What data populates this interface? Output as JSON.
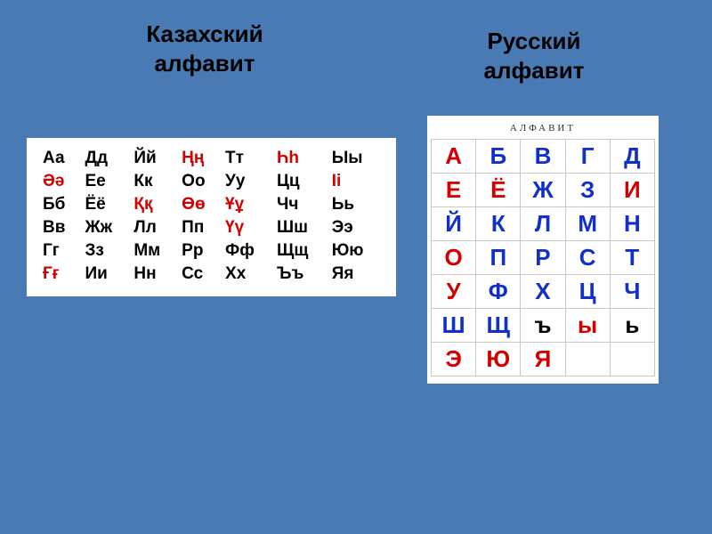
{
  "titles": {
    "kazakh": "Казахский алфавит",
    "russian": "Русский алфавит"
  },
  "kazakh_alphabet": {
    "background_color": "#ffffff",
    "text_color": "#000000",
    "highlight_color": "#d30000",
    "font_size": 19,
    "columns": 7,
    "rows": [
      [
        {
          "t": "Аа",
          "c": "black"
        },
        {
          "t": "Дд",
          "c": "black"
        },
        {
          "t": "Йй",
          "c": "black"
        },
        {
          "t": "Ңң",
          "c": "red"
        },
        {
          "t": "Тт",
          "c": "black"
        },
        {
          "t": "Һһ",
          "c": "red"
        },
        {
          "t": "Ыы",
          "c": "black"
        }
      ],
      [
        {
          "t": "Әә",
          "c": "red"
        },
        {
          "t": "Ее",
          "c": "black"
        },
        {
          "t": "Кк",
          "c": "black"
        },
        {
          "t": "Оо",
          "c": "black"
        },
        {
          "t": "Уу",
          "c": "black"
        },
        {
          "t": "Цц",
          "c": "black"
        },
        {
          "t": "Іі",
          "c": "red"
        }
      ],
      [
        {
          "t": "Бб",
          "c": "black"
        },
        {
          "t": "Ёё",
          "c": "black"
        },
        {
          "t": "Ққ",
          "c": "red"
        },
        {
          "t": "Өө",
          "c": "red"
        },
        {
          "t": "Ұұ",
          "c": "red"
        },
        {
          "t": "Чч",
          "c": "black"
        },
        {
          "t": "Ьь",
          "c": "black"
        }
      ],
      [
        {
          "t": "Вв",
          "c": "black"
        },
        {
          "t": "Жж",
          "c": "black"
        },
        {
          "t": "Лл",
          "c": "black"
        },
        {
          "t": "Пп",
          "c": "black"
        },
        {
          "t": "Үү",
          "c": "red"
        },
        {
          "t": "Шш",
          "c": "black"
        },
        {
          "t": "Ээ",
          "c": "black"
        }
      ],
      [
        {
          "t": "Гг",
          "c": "black"
        },
        {
          "t": "Зз",
          "c": "black"
        },
        {
          "t": "Мм",
          "c": "black"
        },
        {
          "t": "Рр",
          "c": "black"
        },
        {
          "t": "Фф",
          "c": "black"
        },
        {
          "t": "Щщ",
          "c": "black"
        },
        {
          "t": "Юю",
          "c": "black"
        }
      ],
      [
        {
          "t": "Ғғ",
          "c": "red"
        },
        {
          "t": "Ии",
          "c": "black"
        },
        {
          "t": "Нн",
          "c": "black"
        },
        {
          "t": "Сс",
          "c": "black"
        },
        {
          "t": "Хх",
          "c": "black"
        },
        {
          "t": "Ъъ",
          "c": "black"
        },
        {
          "t": "Яя",
          "c": "black"
        }
      ]
    ]
  },
  "russian_alphabet": {
    "heading": "АЛФАВИТ",
    "background_color": "#ffffff",
    "grid_color": "#c9c9c9",
    "red": "#d40000",
    "blue": "#1030c8",
    "black": "#000000",
    "font_size": 26,
    "columns": 5,
    "rows": [
      [
        {
          "t": "А",
          "c": "red"
        },
        {
          "t": "Б",
          "c": "blue"
        },
        {
          "t": "В",
          "c": "blue"
        },
        {
          "t": "Г",
          "c": "blue"
        },
        {
          "t": "Д",
          "c": "blue"
        }
      ],
      [
        {
          "t": "Е",
          "c": "red"
        },
        {
          "t": "Ё",
          "c": "red"
        },
        {
          "t": "Ж",
          "c": "blue"
        },
        {
          "t": "З",
          "c": "blue"
        },
        {
          "t": "И",
          "c": "red"
        }
      ],
      [
        {
          "t": "Й",
          "c": "blue"
        },
        {
          "t": "К",
          "c": "blue"
        },
        {
          "t": "Л",
          "c": "blue"
        },
        {
          "t": "М",
          "c": "blue"
        },
        {
          "t": "Н",
          "c": "blue"
        }
      ],
      [
        {
          "t": "О",
          "c": "red"
        },
        {
          "t": "П",
          "c": "blue"
        },
        {
          "t": "Р",
          "c": "blue"
        },
        {
          "t": "С",
          "c": "blue"
        },
        {
          "t": "Т",
          "c": "blue"
        }
      ],
      [
        {
          "t": "У",
          "c": "red"
        },
        {
          "t": "Ф",
          "c": "blue"
        },
        {
          "t": "Х",
          "c": "blue"
        },
        {
          "t": "Ц",
          "c": "blue"
        },
        {
          "t": "Ч",
          "c": "blue"
        }
      ],
      [
        {
          "t": "Ш",
          "c": "blue"
        },
        {
          "t": "Щ",
          "c": "blue"
        },
        {
          "t": "ъ",
          "c": "black"
        },
        {
          "t": "ы",
          "c": "red"
        },
        {
          "t": "ь",
          "c": "black"
        }
      ],
      [
        {
          "t": "Э",
          "c": "red"
        },
        {
          "t": "Ю",
          "c": "red"
        },
        {
          "t": "Я",
          "c": "red"
        },
        {
          "t": "",
          "c": "empty"
        },
        {
          "t": "",
          "c": "empty"
        }
      ]
    ]
  }
}
